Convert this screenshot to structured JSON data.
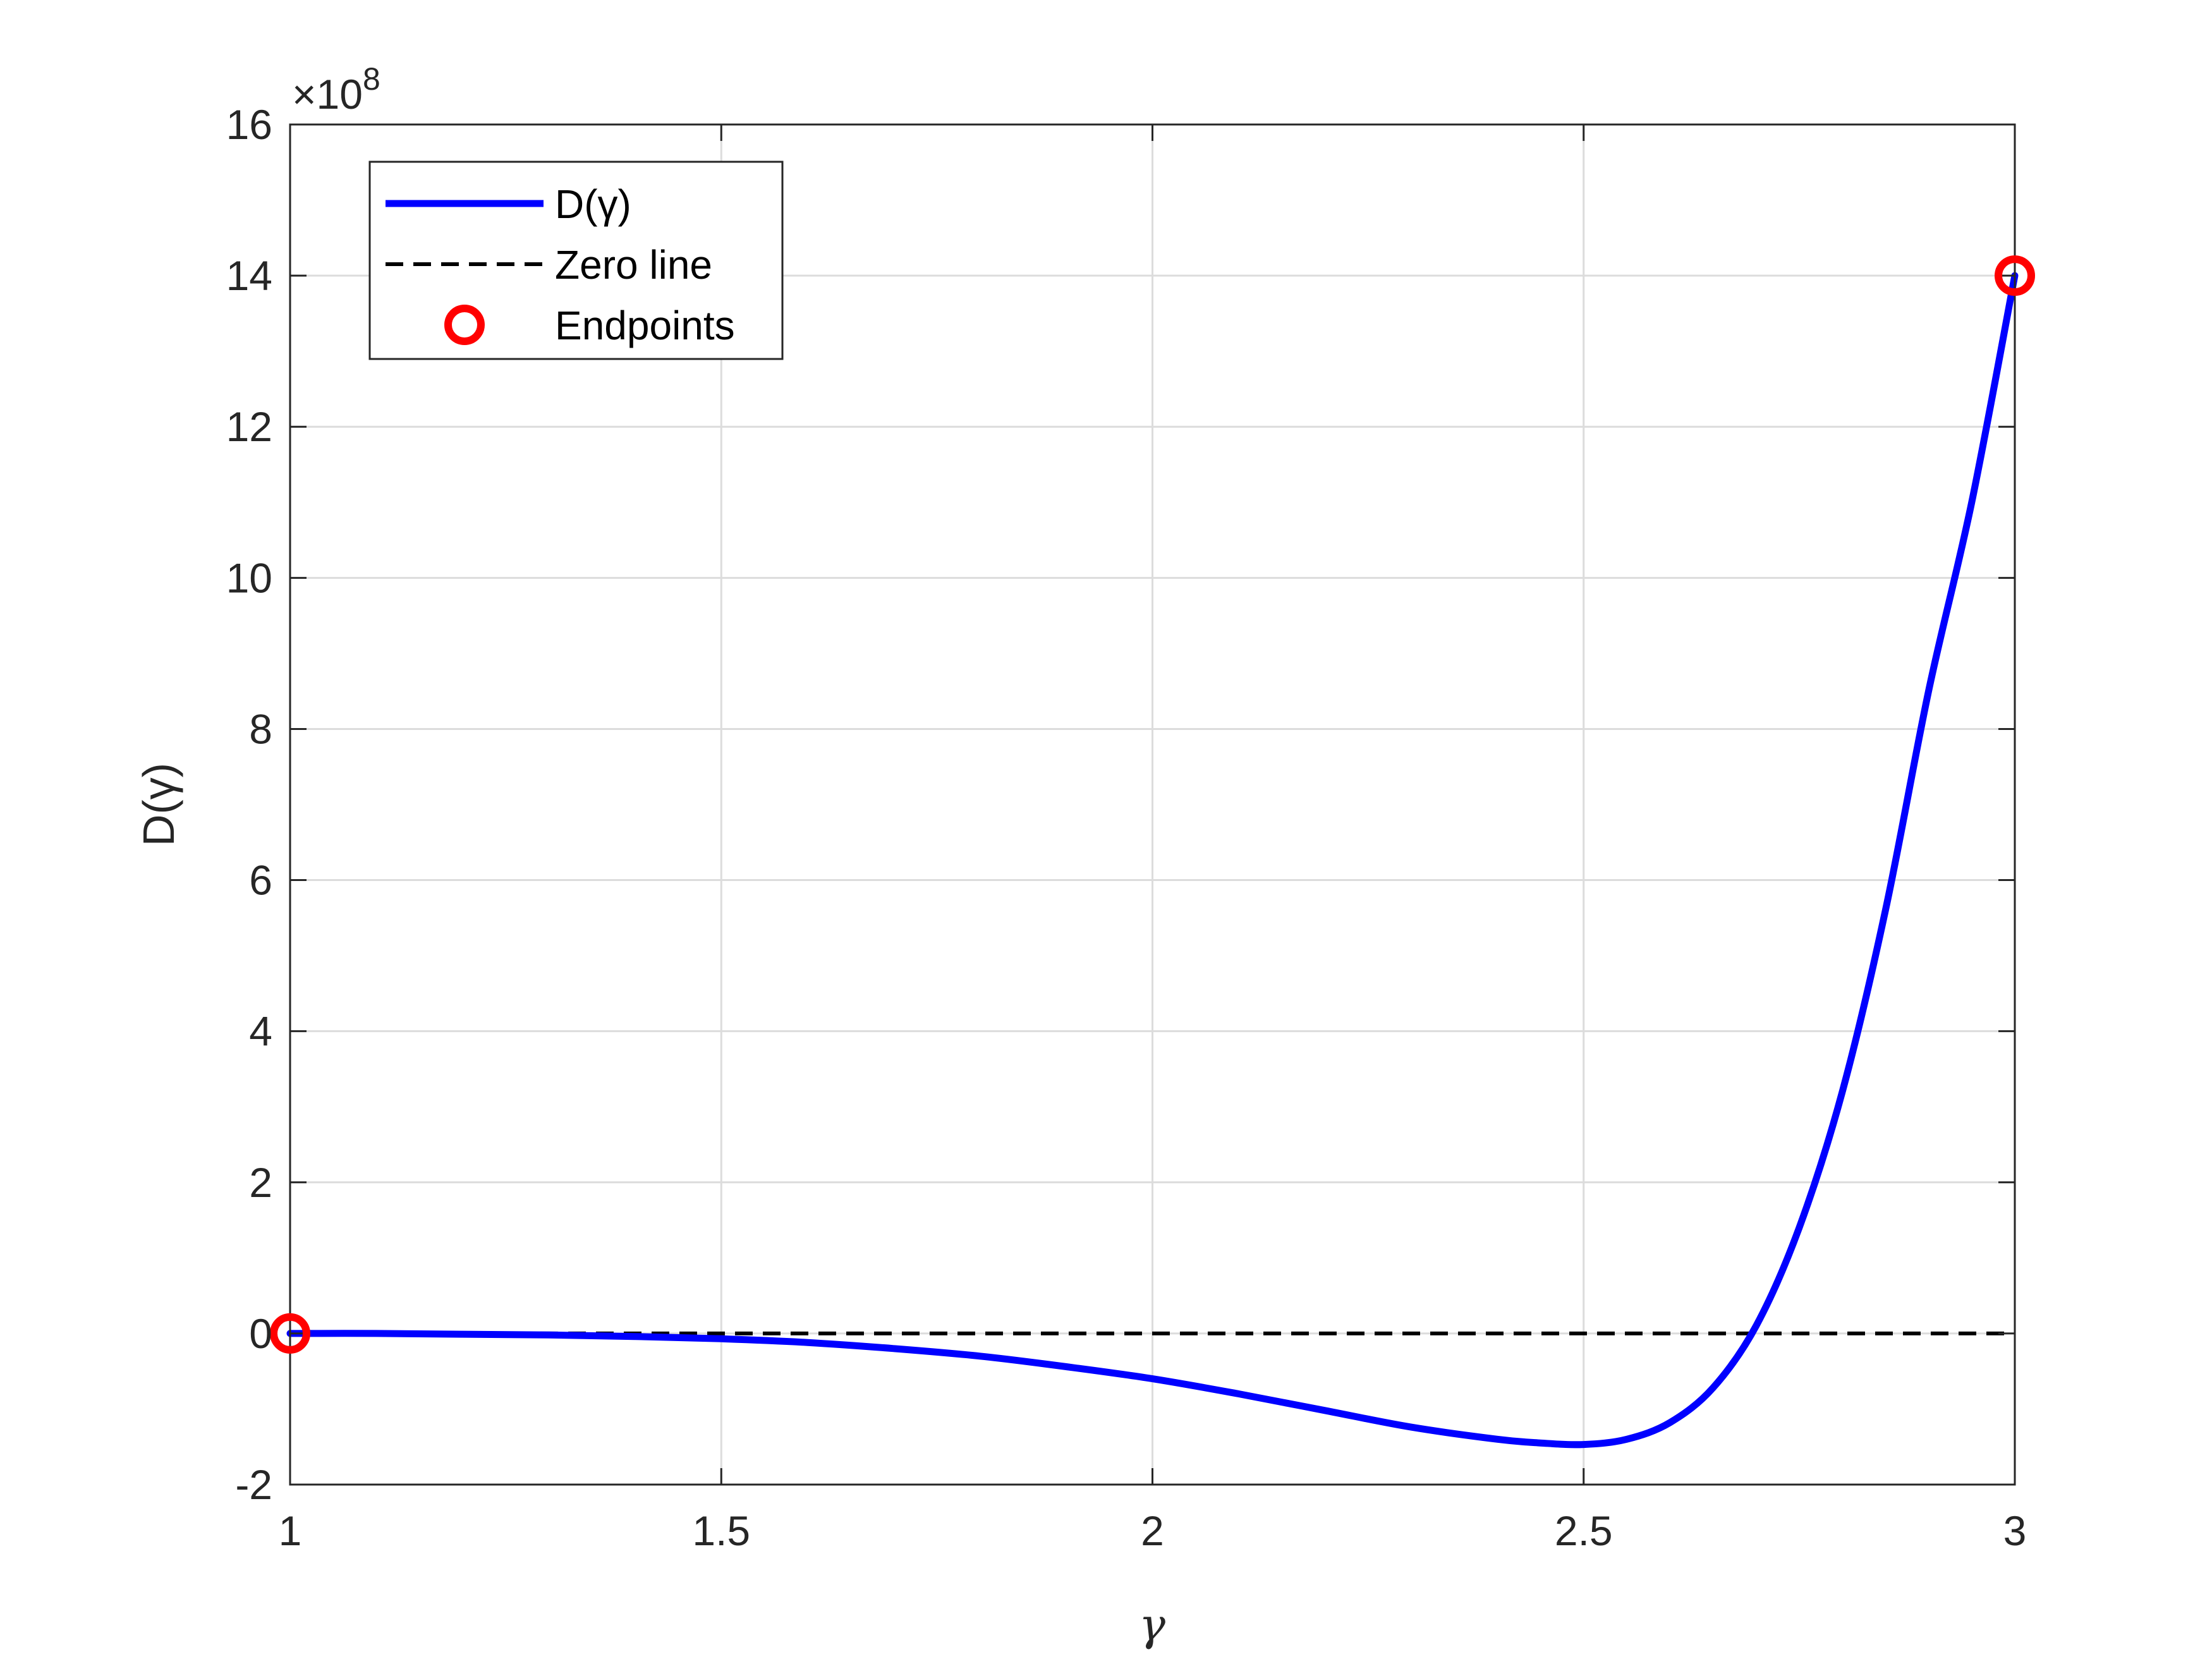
{
  "chart_data": {
    "type": "line",
    "xlabel": "γ",
    "ylabel": "D(γ)",
    "exponent_label": "×10",
    "exponent_power": "8",
    "xlim": [
      1,
      3
    ],
    "ylim": [
      -2,
      16
    ],
    "xticks": [
      1,
      1.5,
      2,
      2.5,
      3
    ],
    "xtick_labels": [
      "1",
      "1.5",
      "2",
      "2.5",
      "3"
    ],
    "yticks": [
      -2,
      0,
      2,
      4,
      6,
      8,
      10,
      12,
      14,
      16
    ],
    "ytick_labels": [
      "-2",
      "0",
      "2",
      "4",
      "6",
      "8",
      "10",
      "12",
      "14",
      "16"
    ],
    "y_scale_note": "y values in units of 1e8",
    "grid": true,
    "legend_position": "top-left",
    "series": [
      {
        "name": "D(γ)",
        "style": "solid",
        "color": "#0000FF",
        "x": [
          1.0,
          1.1,
          1.2,
          1.3,
          1.4,
          1.5,
          1.6,
          1.7,
          1.8,
          1.9,
          2.0,
          2.1,
          2.2,
          2.3,
          2.4,
          2.45,
          2.5,
          2.55,
          2.6,
          2.65,
          2.7,
          2.75,
          2.8,
          2.85,
          2.9,
          2.95,
          3.0
        ],
        "y": [
          0.0,
          0.0,
          -0.01,
          -0.02,
          -0.04,
          -0.07,
          -0.12,
          -0.2,
          -0.3,
          -0.44,
          -0.6,
          -0.8,
          -1.02,
          -1.24,
          -1.4,
          -1.45,
          -1.47,
          -1.4,
          -1.18,
          -0.72,
          0.1,
          1.4,
          3.2,
          5.6,
          8.5,
          11.0,
          14.0
        ]
      },
      {
        "name": "Zero line",
        "style": "dashed",
        "color": "#000000",
        "x": [
          1,
          3
        ],
        "y": [
          0,
          0
        ]
      },
      {
        "name": "Endpoints",
        "style": "markers",
        "color": "#FF0000",
        "x": [
          1,
          3
        ],
        "y": [
          0,
          14
        ]
      }
    ]
  }
}
